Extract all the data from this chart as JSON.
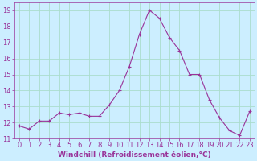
{
  "x": [
    0,
    1,
    2,
    3,
    4,
    5,
    6,
    7,
    8,
    9,
    10,
    11,
    12,
    13,
    14,
    15,
    16,
    17,
    18,
    19,
    20,
    21,
    22,
    23
  ],
  "y": [
    11.8,
    11.6,
    12.1,
    12.1,
    12.6,
    12.5,
    12.6,
    12.4,
    12.4,
    13.1,
    14.0,
    15.5,
    17.5,
    19.0,
    18.5,
    17.3,
    16.5,
    15.0,
    15.0,
    13.4,
    12.3,
    11.5,
    11.2,
    12.7
  ],
  "line_color": "#993399",
  "marker": "+",
  "marker_size": 3,
  "marker_linewidth": 0.8,
  "bg_color": "#cceeff",
  "grid_color": "#aaddcc",
  "xlabel": "Windchill (Refroidissement éolien,°C)",
  "xlabel_fontsize": 6.5,
  "tick_fontsize": 6,
  "ylim": [
    11,
    19.5
  ],
  "xlim": [
    -0.5,
    23.5
  ],
  "yticks": [
    11,
    12,
    13,
    14,
    15,
    16,
    17,
    18,
    19
  ],
  "xticks": [
    0,
    1,
    2,
    3,
    4,
    5,
    6,
    7,
    8,
    9,
    10,
    11,
    12,
    13,
    14,
    15,
    16,
    17,
    18,
    19,
    20,
    21,
    22,
    23
  ],
  "tick_color": "#993399",
  "label_color": "#993399",
  "spine_color": "#993399",
  "line_width": 0.8
}
